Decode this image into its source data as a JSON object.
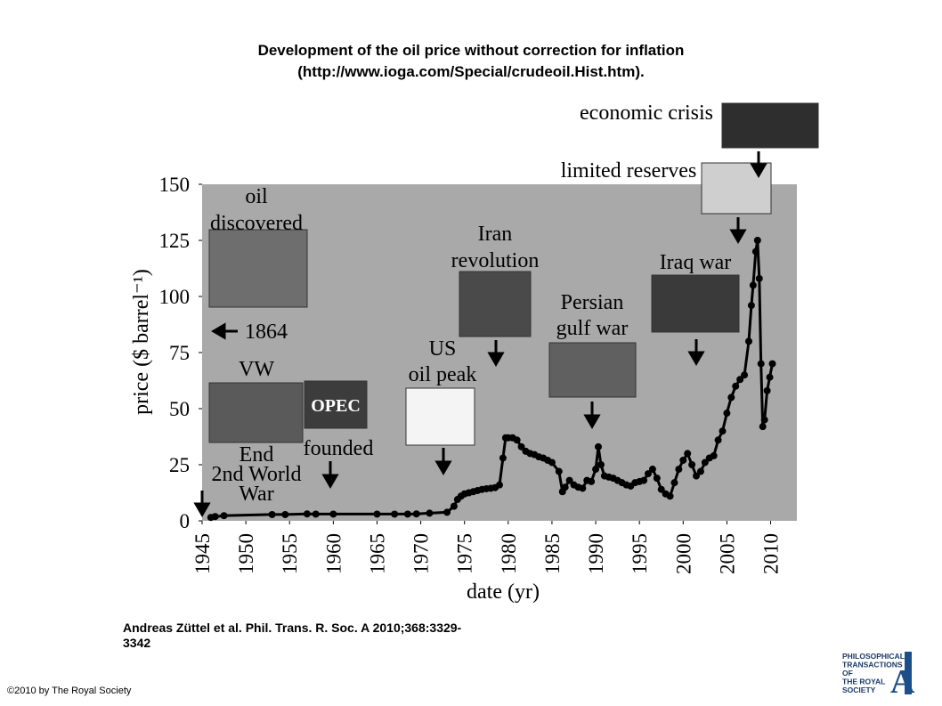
{
  "chart_data": {
    "type": "line",
    "title": [
      "Development of the oil price without correction for inflation",
      "(http://www.ioga.com/Special/crudeoil.Hist.htm)."
    ],
    "x_label": "date (yr)",
    "y_label": "price ($ barrel⁻¹)",
    "xlim": [
      1945,
      2013
    ],
    "ylim": [
      0,
      150
    ],
    "xticks": [
      1945,
      1950,
      1955,
      1960,
      1965,
      1970,
      1975,
      1980,
      1985,
      1990,
      1995,
      2000,
      2005,
      2010
    ],
    "yticks": [
      0,
      25,
      50,
      75,
      100,
      125,
      150
    ],
    "color": "#000000",
    "x": [
      1946,
      1946.5,
      1947.5,
      1953,
      1954.5,
      1957,
      1958,
      1960,
      1965,
      1967,
      1968.5,
      1969.5,
      1971,
      1973,
      1973.8,
      1974.2,
      1974.6,
      1975,
      1975.5,
      1976,
      1976.5,
      1977,
      1977.5,
      1978,
      1978.5,
      1979,
      1979.4,
      1979.7,
      1980,
      1980.5,
      1981,
      1981.5,
      1982,
      1982.5,
      1983,
      1983.5,
      1984,
      1984.5,
      1985,
      1985.8,
      1986.2,
      1986.5,
      1987,
      1987.5,
      1988,
      1988.5,
      1989,
      1989.5,
      1990,
      1990.3,
      1990.6,
      1991,
      1991.5,
      1992,
      1992.5,
      1993,
      1993.5,
      1994,
      1994.5,
      1995,
      1995.5,
      1996,
      1996.5,
      1997,
      1997.5,
      1998,
      1998.5,
      1999,
      1999.5,
      2000,
      2000.5,
      2001,
      2001.5,
      2002,
      2002.5,
      2003,
      2003.5,
      2004,
      2004.5,
      2005,
      2005.5,
      2006,
      2006.5,
      2007,
      2007.5,
      2007.8,
      2008,
      2008.3,
      2008.5,
      2008.7,
      2008.9,
      2009.1,
      2009.3,
      2009.6,
      2009.9,
      2010.2
    ],
    "values": [
      1.5,
      1.9,
      2.3,
      2.8,
      2.8,
      3.1,
      3.0,
      3.0,
      3.0,
      3.0,
      3.0,
      3.1,
      3.4,
      3.8,
      6.5,
      9.5,
      11,
      12,
      12.5,
      13,
      13.5,
      14,
      14.3,
      14.5,
      14.8,
      16,
      28,
      37,
      37,
      37,
      36,
      33,
      31,
      30,
      29.5,
      28.5,
      28,
      27,
      26,
      22,
      13,
      15,
      18,
      16,
      15,
      14.5,
      18,
      17.5,
      23,
      33,
      25,
      20,
      19.5,
      19,
      18,
      17,
      16,
      15.5,
      17,
      17.5,
      18,
      21,
      23,
      19,
      14,
      12,
      11,
      17,
      23,
      27,
      30,
      25,
      20,
      22,
      26,
      28,
      29,
      36,
      40,
      48,
      55,
      60,
      63,
      65,
      80,
      96,
      105,
      120,
      125,
      108,
      70,
      42,
      45,
      58,
      64,
      70
    ],
    "annotations": [
      [
        "oil",
        "discovered"
      ],
      [
        "1864"
      ],
      [
        "VW"
      ],
      [
        "End",
        "2nd World",
        "War"
      ],
      [
        "OPEC"
      ],
      [
        "founded"
      ],
      [
        "US",
        "oil peak"
      ],
      [
        "Iran",
        "revolution"
      ],
      [
        "Persian",
        "gulf war"
      ],
      [
        "Iraq war"
      ],
      [
        "limited reserves"
      ],
      [
        "economic crisis"
      ]
    ],
    "citation": [
      "Andreas Züttel et al. Phil. Trans. R. Soc. A 2010;368:3329-",
      "3342"
    ],
    "copyright": "©2010 by The Royal Society",
    "logo": [
      "PHILOSOPHICAL",
      "TRANSACTIONS",
      "OF",
      "THE ROYAL",
      "SOCIETY"
    ],
    "logo_letter": "A"
  }
}
